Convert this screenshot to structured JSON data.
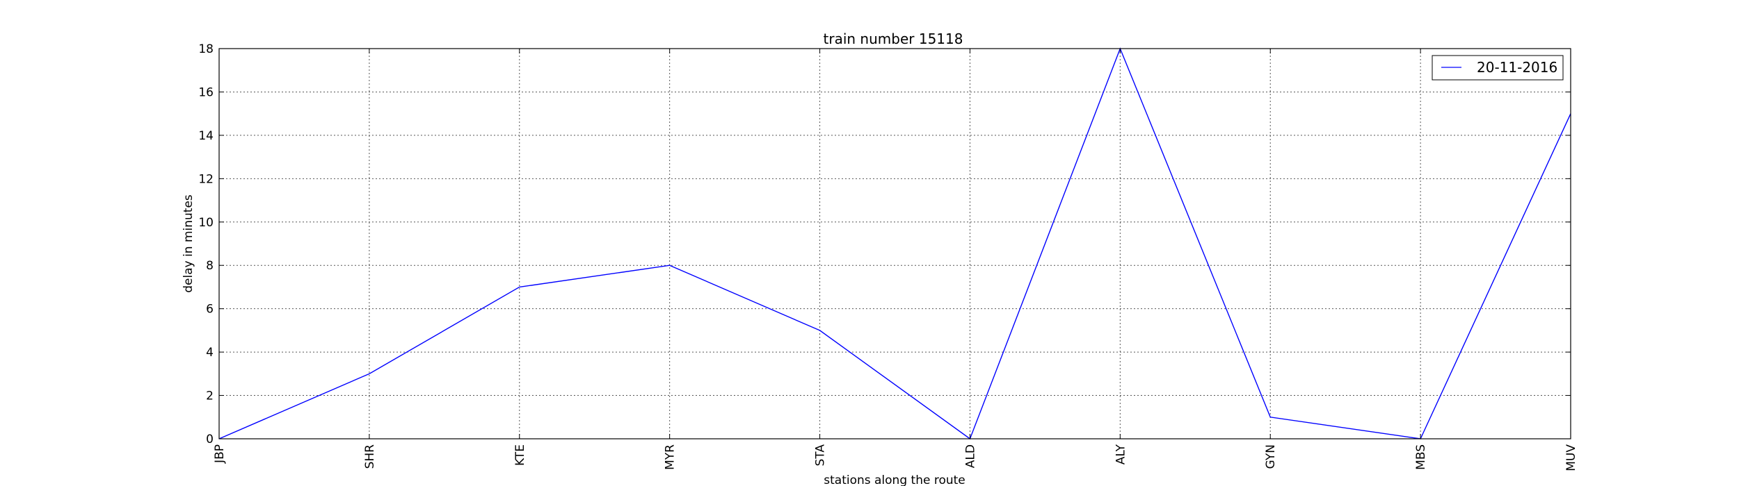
{
  "chart_data": {
    "type": "line",
    "title": "train number 15118",
    "xlabel": "stations along the route",
    "ylabel": "delay in minutes",
    "categories": [
      "JBP",
      "SHR",
      "KTE",
      "MYR",
      "STA",
      "ALD",
      "ALY",
      "GYN",
      "MBS",
      "MUV"
    ],
    "series": [
      {
        "name": "20-11-2016",
        "values": [
          0,
          3,
          7,
          8,
          5,
          0,
          18,
          1,
          0,
          15
        ],
        "color": "#0000ff"
      }
    ],
    "yticks": [
      0,
      2,
      4,
      6,
      8,
      10,
      12,
      14,
      16,
      18
    ],
    "ylim": [
      0,
      18
    ],
    "grid": true,
    "legend_position": "top-right"
  }
}
